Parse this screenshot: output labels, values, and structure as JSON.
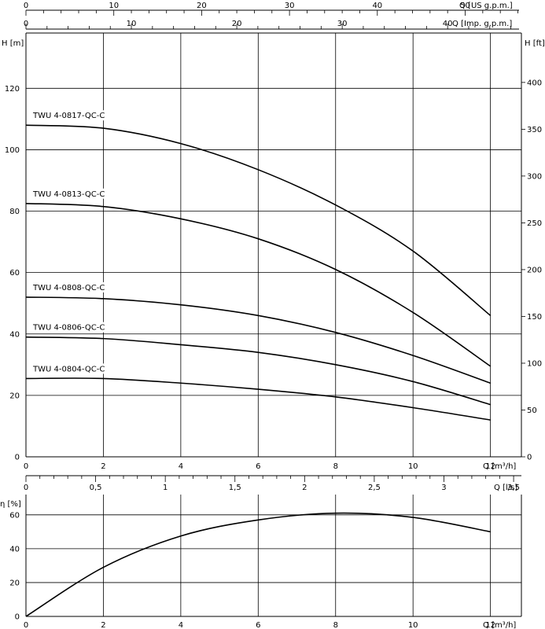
{
  "chart_data": [
    {
      "type": "line",
      "title": "",
      "axes": {
        "top_us": {
          "label": "Q [US g.p.m.]",
          "range": [
            0,
            56.4
          ],
          "ticks": [
            0,
            10,
            20,
            30,
            40,
            50
          ]
        },
        "top_imp": {
          "label": "Q [Imp. g.p.m.]",
          "range": [
            0,
            47.0
          ],
          "ticks": [
            0,
            10,
            20,
            30,
            40
          ]
        },
        "x": {
          "label": "Q [m³/h]",
          "range": [
            0,
            12.8
          ],
          "ticks": [
            0,
            2,
            4,
            6,
            8,
            10,
            12
          ]
        },
        "x_ls": {
          "label": "Q [l/s]",
          "range": [
            0,
            3.556
          ],
          "ticks": [
            "0",
            "0,5",
            "1",
            "1,5",
            "2",
            "2,5",
            "3",
            "3,5"
          ]
        },
        "y_left": {
          "label": "H [m]",
          "range": [
            0,
            138
          ],
          "ticks": [
            0,
            20,
            40,
            60,
            80,
            100,
            120
          ]
        },
        "y_right": {
          "label": "H [ft]",
          "range": [
            0,
            452.8
          ],
          "ticks": [
            0,
            50,
            100,
            150,
            200,
            250,
            300,
            350,
            400
          ]
        }
      },
      "grid": true,
      "series": [
        {
          "name": "TWU 4-0817-QC-C",
          "x": [
            0,
            2,
            4,
            6,
            8,
            10,
            12
          ],
          "y": [
            108,
            107,
            102,
            93.5,
            82,
            67,
            46
          ]
        },
        {
          "name": "TWU 4-0813-QC-C",
          "x": [
            0,
            2,
            4,
            6,
            8,
            10,
            12
          ],
          "y": [
            82.5,
            81.5,
            77.5,
            71,
            61,
            47,
            29.5
          ]
        },
        {
          "name": "TWU 4-0808-QC-C",
          "x": [
            0,
            2,
            4,
            6,
            8,
            10,
            12
          ],
          "y": [
            52,
            51.5,
            49.5,
            46,
            40.5,
            33,
            24
          ]
        },
        {
          "name": "TWU 4-0806-QC-C",
          "x": [
            0,
            2,
            4,
            6,
            8,
            10,
            12
          ],
          "y": [
            39,
            38.5,
            36.5,
            34,
            30,
            24.5,
            17
          ]
        },
        {
          "name": "TWU 4-0804-QC-C",
          "x": [
            0,
            2,
            4,
            6,
            8,
            10,
            12
          ],
          "y": [
            25.5,
            25.5,
            24,
            22,
            19.5,
            16,
            12
          ]
        }
      ]
    },
    {
      "type": "line",
      "title": "",
      "axes": {
        "x": {
          "label": "Q [m³/h]",
          "range": [
            0,
            12.8
          ],
          "ticks": [
            0,
            2,
            4,
            6,
            8,
            10,
            12
          ]
        },
        "y": {
          "label": "η [%]",
          "range": [
            0,
            72
          ],
          "ticks": [
            0,
            20,
            40,
            60
          ]
        }
      },
      "grid": true,
      "series": [
        {
          "name": "",
          "x": [
            0,
            2,
            4,
            6,
            8,
            10,
            12
          ],
          "y": [
            0,
            29,
            47.5,
            57,
            61,
            58.5,
            50
          ]
        }
      ]
    }
  ]
}
